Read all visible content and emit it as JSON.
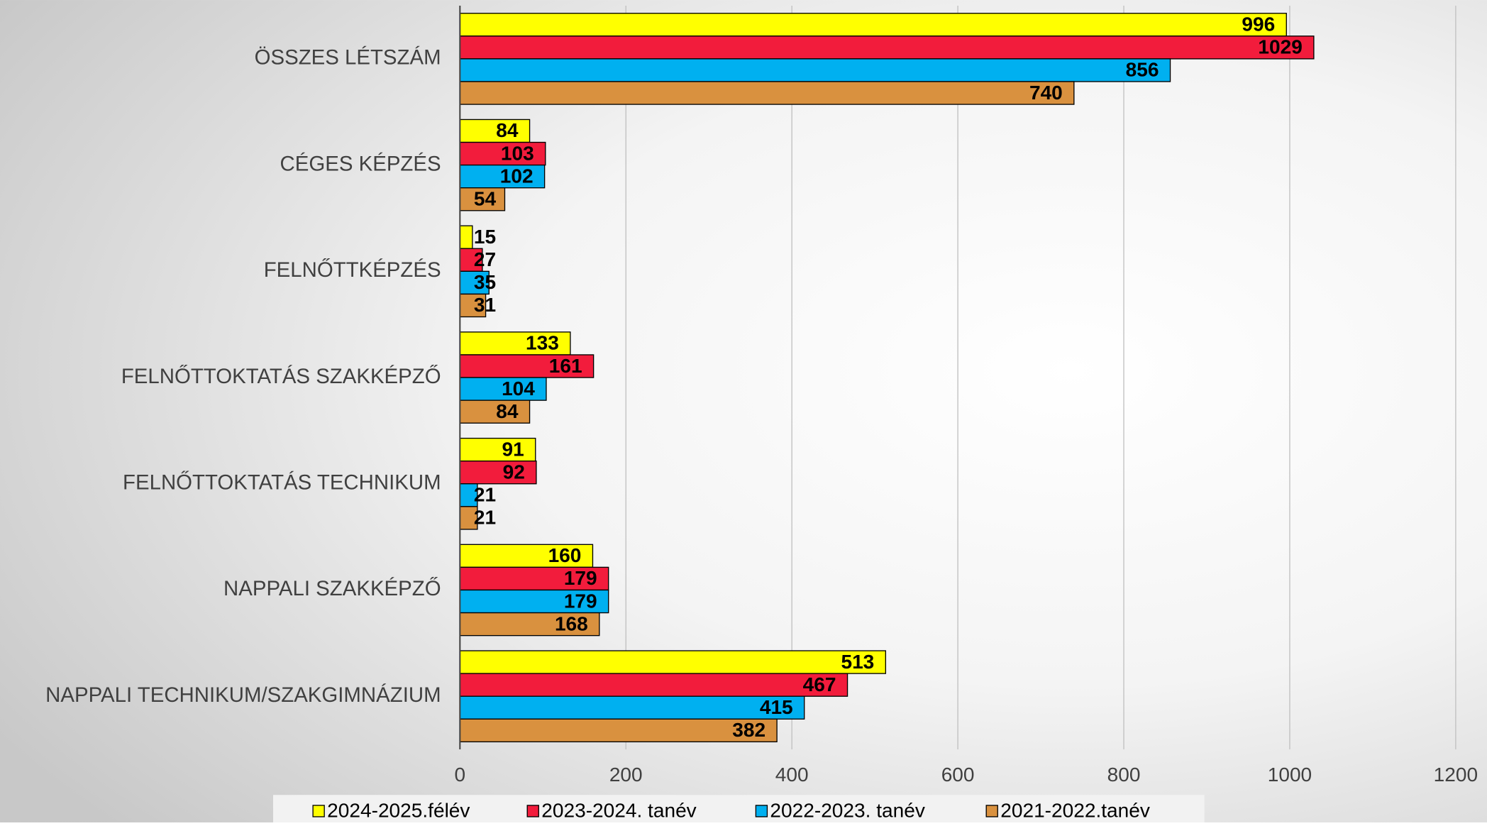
{
  "chart_data": {
    "type": "bar",
    "orientation": "horizontal",
    "categories": [
      "ÖSSZES LÉTSZÁM",
      "CÉGES KÉPZÉS",
      "FELNŐTTKÉPZÉS",
      "FELNŐTTOKTATÁS SZAKKÉPZŐ",
      "FELNŐTTOKTATÁS TECHNIKUM",
      "NAPPALI SZAKKÉPZŐ",
      "NAPPALI TECHNIKUM/SZAKGIMNÁZIUM"
    ],
    "series": [
      {
        "name": "2024-2025.félév",
        "color": "#ffff00",
        "values": [
          996,
          84,
          15,
          133,
          91,
          160,
          513
        ]
      },
      {
        "name": "2023-2024. tanév",
        "color": "#f21c3c",
        "values": [
          1029,
          103,
          27,
          161,
          92,
          179,
          467
        ]
      },
      {
        "name": "2022-2023. tanév",
        "color": "#00b0f0",
        "values": [
          856,
          102,
          35,
          104,
          21,
          179,
          415
        ]
      },
      {
        "name": "2021-2022.tanév",
        "color": "#d9913f",
        "values": [
          740,
          54,
          31,
          84,
          21,
          168,
          382
        ]
      }
    ],
    "xlim": [
      0,
      1200
    ],
    "xticks": [
      0,
      200,
      400,
      600,
      800,
      1000,
      1200
    ],
    "grid": true,
    "legend": "bottom"
  }
}
